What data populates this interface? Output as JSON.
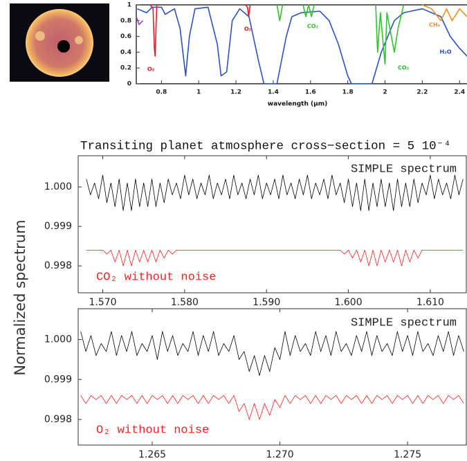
{
  "ylabel": "Normalized spectrum",
  "chart_data": [
    {
      "type": "line",
      "xlabel": "wavelength (μm)",
      "xlim": [
        0.665,
        2.44
      ],
      "ylim": [
        0,
        1
      ],
      "xticks": [
        0.8,
        1,
        1.2,
        1.4,
        1.6,
        1.8,
        2,
        2.2,
        2.4
      ],
      "yticks": [
        0,
        0.2,
        0.4,
        0.6,
        0.8,
        1
      ],
      "series": [
        {
          "color": "#2b50c8",
          "x": [
            0.67,
            0.72,
            0.75,
            0.8,
            0.82,
            0.87,
            0.9,
            0.93,
            0.95,
            0.98,
            1.05,
            1.1,
            1.12,
            1.15,
            1.18,
            1.22,
            1.27,
            1.32,
            1.35,
            1.42,
            1.47,
            1.5,
            1.55,
            1.65,
            1.7,
            1.75,
            1.8,
            1.82,
            1.93,
            1.98,
            2.05,
            2.1,
            2.2,
            2.3,
            2.35,
            2.4,
            2.44
          ],
          "values": [
            0.95,
            0.9,
            0.97,
            0.97,
            0.88,
            0.95,
            0.7,
            0.1,
            0.6,
            0.95,
            0.97,
            0.5,
            0.1,
            0.15,
            0.8,
            0.95,
            0.85,
            0.3,
            0,
            0,
            0.6,
            0.85,
            0.9,
            0.92,
            0.8,
            0.5,
            0.1,
            0,
            0,
            0.4,
            0.8,
            0.9,
            0.95,
            0.85,
            0.6,
            0.45,
            0.35
          ]
        },
        {
          "color": "#e0202a",
          "x": [
            0.74,
            0.755,
            0.762,
            0.766,
            0.775,
            1.0,
            1.25,
            1.262,
            1.268,
            1.276
          ],
          "values": [
            1,
            0.95,
            0.45,
            0.35,
            1,
            null,
            1,
            0.97,
            0.85,
            1
          ]
        },
        {
          "color": "#2fc42f",
          "x": [
            1.42,
            1.435,
            1.45,
            1.5,
            1.56,
            1.575,
            1.59,
            1.605,
            1.62,
            1.8,
            1.95,
            1.96,
            1.975,
            2.0,
            2.01,
            2.05,
            2.07,
            2.1
          ],
          "values": [
            1,
            0.8,
            1,
            null,
            1,
            0.85,
            1,
            0.85,
            1,
            null,
            1,
            0.4,
            0.9,
            0.25,
            0.9,
            0.4,
            0.7,
            1
          ]
        },
        {
          "color": "#f09020",
          "x": [
            2.2,
            2.25,
            2.3,
            2.33,
            2.36,
            2.4,
            2.44
          ],
          "values": [
            1,
            0.95,
            0.8,
            0.95,
            0.8,
            0.95,
            0.85
          ]
        },
        {
          "color": "#a040c0",
          "x": [
            0.665,
            0.68,
            0.7
          ],
          "values": [
            0.85,
            0.75,
            0.8
          ]
        }
      ],
      "annotations": [
        {
          "text": "O₂",
          "color": "#e0202a"
        },
        {
          "text": "O₂",
          "color": "#e0202a"
        },
        {
          "text": "CO₂",
          "color": "#2fc42f"
        },
        {
          "text": "CO₂",
          "color": "#2fc42f"
        },
        {
          "text": "CH₄",
          "color": "#f09020"
        },
        {
          "text": "H₂O",
          "color": "#2b50c8"
        }
      ]
    },
    {
      "type": "line",
      "title": "Transiting planet atmosphere cross−section = 5 10⁻⁴",
      "xlim": [
        1.567,
        1.6144
      ],
      "ylim": [
        0.99732,
        1.00079
      ],
      "xticks": [
        {
          "value": 1.57,
          "label": "1.570"
        },
        {
          "value": 1.58,
          "label": "1.580"
        },
        {
          "value": 1.59,
          "label": "1.590"
        },
        {
          "value": 1.6,
          "label": "1.600"
        },
        {
          "value": 1.61,
          "label": "1.610"
        }
      ],
      "yticks": [
        0.998,
        0.999,
        {
          "value": 1,
          "label": "1.000"
        }
      ],
      "x": [
        1.568,
        1.5685,
        1.569,
        1.5695,
        1.57,
        1.5705,
        1.571,
        1.5715,
        1.572,
        1.5725,
        1.573,
        1.5735,
        1.574,
        1.5745,
        1.575,
        1.5755,
        1.576,
        1.5765,
        1.577,
        1.5775,
        1.578,
        1.5785,
        1.579,
        1.5795,
        1.58,
        1.5805,
        1.581,
        1.5815,
        1.582,
        1.5825,
        1.583,
        1.5835,
        1.584,
        1.5845,
        1.585,
        1.5855,
        1.586,
        1.5865,
        1.587,
        1.5875,
        1.588,
        1.5885,
        1.589,
        1.5895,
        1.59,
        1.5905,
        1.591,
        1.5915,
        1.592,
        1.5925,
        1.593,
        1.5935,
        1.594,
        1.5945,
        1.595,
        1.5955,
        1.596,
        1.5965,
        1.597,
        1.5975,
        1.598,
        1.5985,
        1.599,
        1.5995,
        1.6,
        1.6005,
        1.601,
        1.6015,
        1.602,
        1.6025,
        1.603,
        1.6035,
        1.604,
        1.6045,
        1.605,
        1.6055,
        1.606,
        1.6065,
        1.607,
        1.6075,
        1.608,
        1.6085,
        1.609,
        1.6095,
        1.61,
        1.6105,
        1.611,
        1.6115,
        1.612,
        1.6125,
        1.613,
        1.6135,
        1.614
      ],
      "series": [
        {
          "color": "#000000",
          "values": [
            1.0002,
            0.9998,
            1.0001,
            0.9997,
            1.0003,
            0.9996,
            1.0001,
            0.9995,
            1.0002,
            0.9994,
            1.0001,
            0.9994,
            1.0002,
            0.9995,
            1.0001,
            0.9995,
            1.0002,
            0.9995,
            1.0001,
            0.9996,
            1.0002,
            0.9998,
            1.0001,
            0.9997,
            1.0003,
            0.9998,
            1.0002,
            0.9997,
            1.0001,
            0.9998,
            1.0003,
            0.9997,
            1.0001,
            0.9998,
            1.0002,
            0.9997,
            1.0003,
            0.9998,
            1.0001,
            0.9997,
            1.0002,
            0.9998,
            1.0003,
            0.9997,
            1.0001,
            0.9998,
            1.0002,
            0.9997,
            1.0003,
            0.9998,
            1.0001,
            0.9997,
            1.0002,
            0.9998,
            1.0003,
            0.9997,
            1.0001,
            0.9998,
            1.0002,
            0.9997,
            1.0003,
            0.9998,
            1.0001,
            0.9996,
            1.0002,
            0.9995,
            1.0001,
            0.9994,
            1.0002,
            0.9994,
            1.0001,
            0.9995,
            1.0002,
            0.9995,
            1.0001,
            0.9994,
            1.0002,
            0.9995,
            1.0001,
            0.9995,
            1.0002,
            0.9996,
            1.0001,
            0.9998,
            1.0003,
            0.9997,
            1.0002,
            0.9998,
            1.0001,
            0.9997,
            1.0003,
            0.9998,
            1.0002
          ]
        },
        {
          "color": "#ff2020",
          "values": [
            0.9984,
            0.9984,
            0.9984,
            0.9984,
            0.9984,
            0.9983,
            0.9984,
            0.9981,
            0.9984,
            0.998,
            0.9984,
            0.998,
            0.9984,
            0.9981,
            0.9984,
            0.9981,
            0.9984,
            0.9981,
            0.9984,
            0.9982,
            0.9984,
            0.9983,
            0.9984,
            0.9984,
            0.9984,
            0.9984,
            0.9984,
            0.9984,
            0.9984,
            0.9984,
            0.9984,
            0.9984,
            0.9984,
            0.9984,
            0.9984,
            0.9984,
            0.9984,
            0.9984,
            0.9984,
            0.9984,
            0.9984,
            0.9984,
            0.9984,
            0.9984,
            0.9984,
            0.9984,
            0.9984,
            0.9984,
            0.9984,
            0.9984,
            0.9984,
            0.9984,
            0.9984,
            0.9984,
            0.9984,
            0.9984,
            0.9984,
            0.9984,
            0.9984,
            0.9984,
            0.9984,
            0.9984,
            0.9984,
            0.9983,
            0.9984,
            0.9982,
            0.9984,
            0.9981,
            0.9984,
            0.998,
            0.9984,
            0.998,
            0.9984,
            0.9981,
            0.9984,
            0.9981,
            0.9984,
            0.998,
            0.9984,
            0.9981,
            0.9984,
            0.9982,
            0.9984,
            0.9984,
            0.9984,
            0.9984,
            0.9984,
            0.9984,
            0.9984,
            0.9984,
            0.9984,
            0.9984,
            0.9984
          ]
        }
      ],
      "annotations": [
        {
          "text": "SIMPLE spectrum",
          "color": "#222222"
        },
        {
          "text": "CO₂ without noise",
          "color": "#ff2020"
        }
      ]
    },
    {
      "type": "line",
      "xlim": [
        1.2621,
        1.2773
      ],
      "ylim": [
        0.99736,
        1.00077
      ],
      "xticks": [
        1.265,
        {
          "value": 1.27,
          "label": "1.270"
        },
        1.275
      ],
      "yticks": [
        0.998,
        0.999,
        {
          "value": 1,
          "label": "1.000"
        }
      ],
      "x": [
        1.2622,
        1.2624,
        1.2626,
        1.2628,
        1.263,
        1.2632,
        1.2634,
        1.2636,
        1.2638,
        1.264,
        1.2642,
        1.2644,
        1.2646,
        1.2648,
        1.265,
        1.2652,
        1.2654,
        1.2656,
        1.2658,
        1.266,
        1.2662,
        1.2664,
        1.2666,
        1.2668,
        1.267,
        1.2672,
        1.2674,
        1.2676,
        1.2678,
        1.268,
        1.2682,
        1.2684,
        1.2686,
        1.2688,
        1.269,
        1.2692,
        1.2694,
        1.2696,
        1.2698,
        1.27,
        1.2702,
        1.2704,
        1.2706,
        1.2708,
        1.271,
        1.2712,
        1.2714,
        1.2716,
        1.2718,
        1.272,
        1.2722,
        1.2724,
        1.2726,
        1.2728,
        1.273,
        1.2732,
        1.2734,
        1.2736,
        1.2738,
        1.274,
        1.2742,
        1.2744,
        1.2746,
        1.2748,
        1.275,
        1.2752,
        1.2754,
        1.2756,
        1.2758,
        1.276,
        1.2762,
        1.2764,
        1.2766,
        1.2768,
        1.277,
        1.2772
      ],
      "series": [
        {
          "color": "#000000",
          "values": [
            1.0002,
            0.9997,
            1.0001,
            0.9996,
            0.9999,
            0.9997,
            1.0002,
            0.9996,
            1.0001,
            0.9997,
            1.0002,
            0.9996,
            0.9999,
            0.9997,
            1.0001,
            0.9995,
            1.0002,
            0.9997,
            1.0001,
            0.9996,
            0.9999,
            0.9997,
            1.0002,
            0.9996,
            1.0001,
            0.9997,
            1.0002,
            0.9996,
            0.9999,
            0.9997,
            1.0001,
            0.9995,
            0.9997,
            0.9992,
            0.9996,
            0.9991,
            0.9996,
            0.9992,
            0.9998,
            0.9995,
            1.0002,
            0.9996,
            1.0001,
            0.9997,
            0.9999,
            0.9996,
            1.0002,
            0.9997,
            1.0001,
            0.9996,
            1.0002,
            0.9997,
            0.9999,
            0.9996,
            1.0001,
            0.9997,
            1.0002,
            0.9996,
            1.0001,
            0.9997,
            0.9999,
            0.9996,
            1.0002,
            0.9997,
            1.0001,
            0.9996,
            1.0002,
            0.9997,
            0.9999,
            0.9996,
            1.0001,
            0.9997,
            1.0002,
            0.9996,
            1.0001,
            0.9997
          ]
        },
        {
          "color": "#ff2020",
          "values": [
            0.9986,
            0.9984,
            0.9986,
            0.9985,
            0.9986,
            0.9984,
            0.9986,
            0.9984,
            0.9986,
            0.9985,
            0.9986,
            0.9984,
            0.9986,
            0.9984,
            0.9986,
            0.9985,
            0.9986,
            0.9984,
            0.9986,
            0.9984,
            0.9986,
            0.9985,
            0.9986,
            0.9984,
            0.9986,
            0.9984,
            0.9986,
            0.9985,
            0.9986,
            0.9984,
            0.9986,
            0.9982,
            0.9984,
            0.998,
            0.9984,
            0.998,
            0.9984,
            0.9981,
            0.9985,
            0.9983,
            0.9986,
            0.9984,
            0.9986,
            0.9985,
            0.9986,
            0.9984,
            0.9986,
            0.9984,
            0.9986,
            0.9985,
            0.9986,
            0.9984,
            0.9986,
            0.9985,
            0.9986,
            0.9984,
            0.9986,
            0.9984,
            0.9986,
            0.9985,
            0.9986,
            0.9984,
            0.9986,
            0.9985,
            0.9986,
            0.9984,
            0.9986,
            0.9984,
            0.9986,
            0.9985,
            0.9986,
            0.9984,
            0.9986,
            0.9985,
            0.9986,
            0.9984
          ]
        }
      ],
      "annotations": [
        {
          "text": "SIMPLE spectrum",
          "color": "#222222"
        },
        {
          "text": "O₂ without noise",
          "color": "#ff2020"
        }
      ]
    }
  ]
}
